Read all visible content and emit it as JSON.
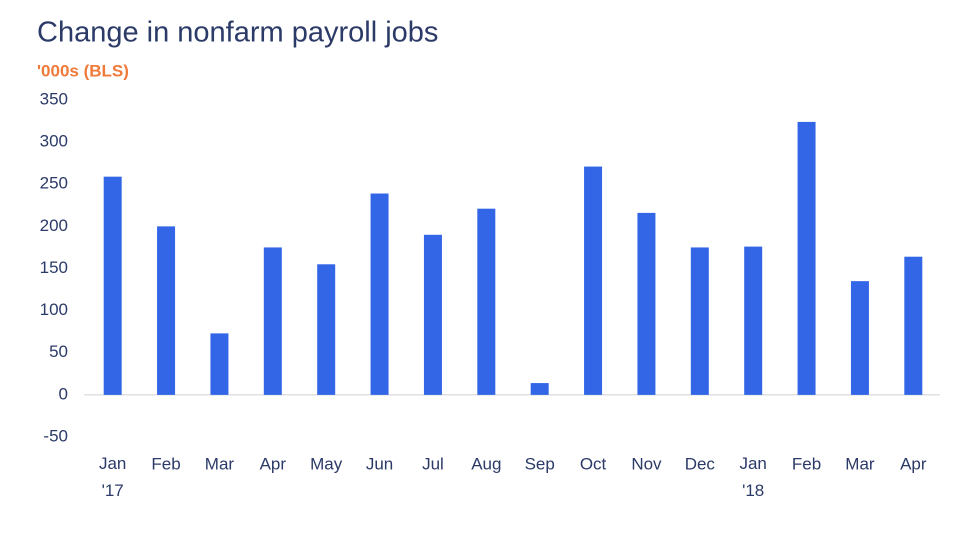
{
  "chart_data": {
    "type": "bar",
    "title": "Change in nonfarm payroll jobs",
    "subtitle": "'000s (BLS)",
    "categories": [
      "Jan\n'17",
      "Feb",
      "Mar",
      "Apr",
      "May",
      "Jun",
      "Jul",
      "Aug",
      "Sep",
      "Oct",
      "Nov",
      "Dec",
      "Jan\n'18",
      "Feb",
      "Mar",
      "Apr"
    ],
    "values": [
      259,
      200,
      73,
      175,
      155,
      239,
      190,
      221,
      14,
      271,
      216,
      175,
      176,
      324,
      135,
      164
    ],
    "color": "#3366e6",
    "ylim": [
      -50,
      350
    ],
    "yticks": [
      -50,
      0,
      50,
      100,
      150,
      200,
      250,
      300,
      350
    ],
    "grid": false
  }
}
